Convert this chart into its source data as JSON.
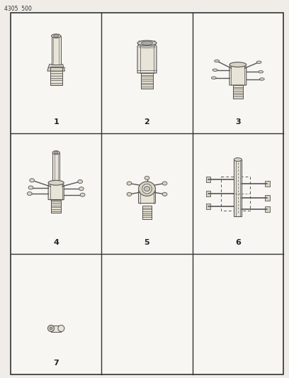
{
  "title": "4305  500",
  "bg_color": "#f0ede8",
  "cell_bg": "#f8f6f2",
  "lc": "#555555",
  "lc_dark": "#333333",
  "fill_light": "#e8e4d8",
  "fill_mid": "#d8d4c4",
  "fill_dark": "#c8c4b4",
  "fill_thread": "#b8b4a4",
  "fig_w": 4.08,
  "fig_h": 5.33,
  "dpi": 100,
  "grid_rows": 3,
  "grid_cols": 3,
  "part_labels": [
    "1",
    "2",
    "3",
    "4",
    "5",
    "6",
    "7"
  ],
  "label_fontsize": 8,
  "title_fontsize": 5.5
}
